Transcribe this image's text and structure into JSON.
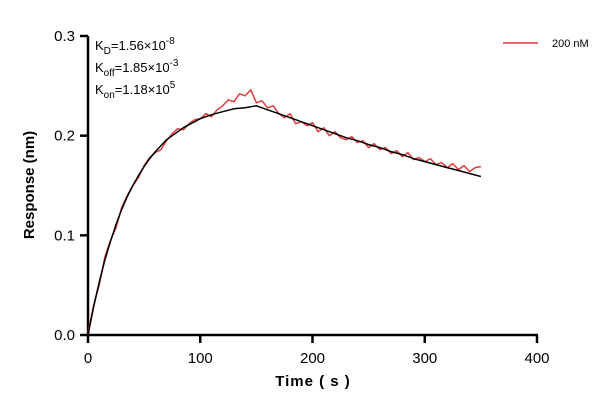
{
  "chart_data": {
    "type": "line",
    "xlabel": "Time ( s )",
    "ylabel": "Response (nm)",
    "xlim": [
      0,
      400
    ],
    "ylim": [
      0,
      0.3
    ],
    "xticks": [
      "0",
      "100",
      "200",
      "300",
      "400"
    ],
    "yticks": [
      "0.0",
      "0.1",
      "0.2",
      "0.3"
    ],
    "grid": false,
    "legend_position": "top-right",
    "annotations": [
      {
        "base": "K",
        "sub": "D",
        "text": "=1.56×10",
        "sup": "-8"
      },
      {
        "base": "K",
        "sub": "off",
        "text": "=1.85×10",
        "sup": "-3"
      },
      {
        "base": "K",
        "sub": "on",
        "text": "=1.18×10",
        "sup": "5"
      }
    ],
    "series": [
      {
        "name": "200 nM",
        "color": "#e03c3c",
        "x": [
          0,
          5,
          10,
          15,
          20,
          25,
          30,
          35,
          40,
          45,
          50,
          55,
          60,
          65,
          70,
          75,
          80,
          85,
          90,
          95,
          100,
          105,
          110,
          115,
          120,
          125,
          130,
          135,
          140,
          145,
          150,
          155,
          160,
          165,
          170,
          175,
          180,
          185,
          190,
          195,
          200,
          205,
          210,
          215,
          220,
          225,
          230,
          235,
          240,
          245,
          250,
          255,
          260,
          265,
          270,
          275,
          280,
          285,
          290,
          295,
          300,
          305,
          310,
          315,
          320,
          325,
          330,
          335,
          340,
          345,
          350
        ],
        "y": [
          0.002,
          0.03,
          0.05,
          0.078,
          0.095,
          0.108,
          0.128,
          0.14,
          0.15,
          0.158,
          0.17,
          0.178,
          0.183,
          0.186,
          0.195,
          0.202,
          0.207,
          0.206,
          0.212,
          0.216,
          0.217,
          0.222,
          0.219,
          0.226,
          0.23,
          0.236,
          0.234,
          0.242,
          0.24,
          0.246,
          0.233,
          0.235,
          0.228,
          0.23,
          0.222,
          0.218,
          0.222,
          0.212,
          0.214,
          0.21,
          0.213,
          0.204,
          0.208,
          0.2,
          0.204,
          0.198,
          0.196,
          0.199,
          0.193,
          0.195,
          0.188,
          0.192,
          0.186,
          0.188,
          0.182,
          0.185,
          0.179,
          0.183,
          0.176,
          0.178,
          0.174,
          0.177,
          0.171,
          0.173,
          0.168,
          0.172,
          0.166,
          0.17,
          0.164,
          0.168,
          0.169
        ]
      },
      {
        "color": "#000000",
        "x": [
          0,
          5,
          10,
          15,
          20,
          25,
          30,
          35,
          40,
          45,
          50,
          55,
          60,
          65,
          70,
          75,
          80,
          85,
          90,
          95,
          100,
          110,
          120,
          130,
          140,
          150,
          160,
          170,
          180,
          190,
          200,
          210,
          220,
          230,
          240,
          250,
          260,
          270,
          280,
          290,
          300,
          310,
          320,
          330,
          340,
          350
        ],
        "y": [
          0,
          0.028,
          0.053,
          0.075,
          0.094,
          0.111,
          0.126,
          0.139,
          0.15,
          0.16,
          0.169,
          0.177,
          0.184,
          0.19,
          0.196,
          0.2,
          0.204,
          0.208,
          0.211,
          0.214,
          0.217,
          0.221,
          0.224,
          0.227,
          0.228,
          0.23,
          0.226,
          0.222,
          0.218,
          0.214,
          0.21,
          0.206,
          0.202,
          0.198,
          0.195,
          0.191,
          0.188,
          0.184,
          0.181,
          0.177,
          0.174,
          0.171,
          0.168,
          0.165,
          0.162,
          0.159
        ]
      }
    ]
  }
}
